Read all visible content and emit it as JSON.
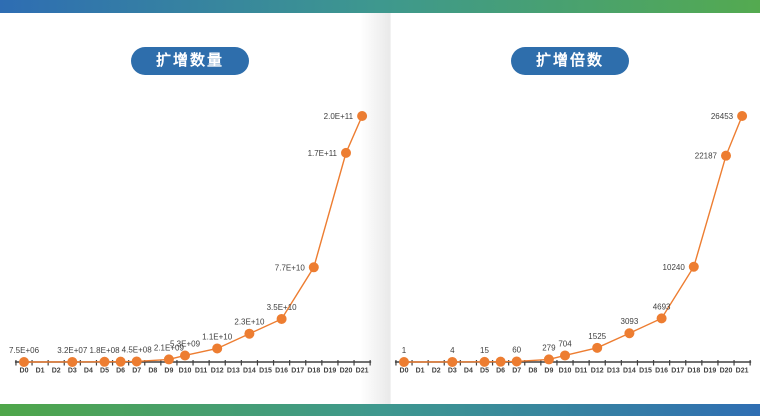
{
  "page": {
    "background": "#ffffff"
  },
  "top_bar": {
    "gradient": [
      "#2E6DB3",
      "#3E988E",
      "#54AA50"
    ]
  },
  "bottom_bar": {
    "gradient": [
      "#4FA64A",
      "#3E988E",
      "#2F6EB3"
    ]
  },
  "theme": {
    "line_color": "#ED7D31",
    "marker_color": "#ED7D31",
    "axis_color": "#404040",
    "tick_label_color": "#404040",
    "data_label_color": "#3F3F3F",
    "pill_bg": "#2E6EAC",
    "pill_text": "#FFFFFF"
  },
  "chart_data": [
    {
      "type": "line",
      "title": "扩增数量",
      "xlabel": "",
      "ylabel": "",
      "legend": "none",
      "grid": false,
      "categories": [
        "D0",
        "D1",
        "D2",
        "D3",
        "D4",
        "D5",
        "D6",
        "D7",
        "D8",
        "D9",
        "D10",
        "D11",
        "D12",
        "D13",
        "D14",
        "D15",
        "D16",
        "D17",
        "D18",
        "D19",
        "D20",
        "D21"
      ],
      "ylim": [
        0,
        200000000000.0
      ],
      "series": [
        {
          "name": "扩增数量",
          "points": [
            {
              "x": "D0",
              "day": 0,
              "value": 7500000.0,
              "label": "7.5E+06"
            },
            {
              "x": "D3",
              "day": 3,
              "value": 32000000.0,
              "label": "3.2E+07"
            },
            {
              "x": "D5",
              "day": 5,
              "value": 180000000.0,
              "label": "1.8E+08"
            },
            {
              "x": "D6",
              "day": 6,
              "value": 260000000.0,
              "label": ""
            },
            {
              "x": "D7",
              "day": 7,
              "value": 450000000.0,
              "label": "4.5E+08"
            },
            {
              "x": "D9",
              "day": 9,
              "value": 2100000000.0,
              "label": "2.1E+09"
            },
            {
              "x": "D10",
              "day": 10,
              "value": 5300000000.0,
              "label": "5.3E+09"
            },
            {
              "x": "D12",
              "day": 12,
              "value": 11000000000.0,
              "label": "1.1E+10"
            },
            {
              "x": "D14",
              "day": 14,
              "value": 23000000000.0,
              "label": "2.3E+10"
            },
            {
              "x": "D16",
              "day": 16,
              "value": 35000000000.0,
              "label": "3.5E+10"
            },
            {
              "x": "D18",
              "day": 18,
              "value": 77000000000.0,
              "label": "7.7E+10"
            },
            {
              "x": "D20",
              "day": 20,
              "value": 170000000000.0,
              "label": "1.7E+11"
            },
            {
              "x": "D21",
              "day": 21,
              "value": 200000000000.0,
              "label": "2.0E+11"
            }
          ]
        }
      ]
    },
    {
      "type": "line",
      "title": "扩增倍数",
      "xlabel": "",
      "ylabel": "",
      "legend": "none",
      "grid": false,
      "categories": [
        "D0",
        "D1",
        "D2",
        "D3",
        "D4",
        "D5",
        "D6",
        "D7",
        "D8",
        "D9",
        "D10",
        "D11",
        "D12",
        "D13",
        "D14",
        "D15",
        "D16",
        "D17",
        "D18",
        "D19",
        "D20",
        "D21"
      ],
      "ylim": [
        0,
        26453
      ],
      "series": [
        {
          "name": "扩增倍数",
          "points": [
            {
              "x": "D0",
              "day": 0,
              "value": 1,
              "label": "1"
            },
            {
              "x": "D3",
              "day": 3,
              "value": 4,
              "label": "4"
            },
            {
              "x": "D5",
              "day": 5,
              "value": 15,
              "label": "15"
            },
            {
              "x": "D6",
              "day": 6,
              "value": 35,
              "label": ""
            },
            {
              "x": "D7",
              "day": 7,
              "value": 60,
              "label": "60"
            },
            {
              "x": "D9",
              "day": 9,
              "value": 279,
              "label": "279"
            },
            {
              "x": "D10",
              "day": 10,
              "value": 704,
              "label": "704"
            },
            {
              "x": "D12",
              "day": 12,
              "value": 1525,
              "label": "1525"
            },
            {
              "x": "D14",
              "day": 14,
              "value": 3093,
              "label": "3093"
            },
            {
              "x": "D16",
              "day": 16,
              "value": 4693,
              "label": "4693"
            },
            {
              "x": "D18",
              "day": 18,
              "value": 10240,
              "label": "10240"
            },
            {
              "x": "D20",
              "day": 20,
              "value": 22187,
              "label": "22187"
            },
            {
              "x": "D21",
              "day": 21,
              "value": 26453,
              "label": "26453"
            }
          ]
        }
      ]
    }
  ]
}
